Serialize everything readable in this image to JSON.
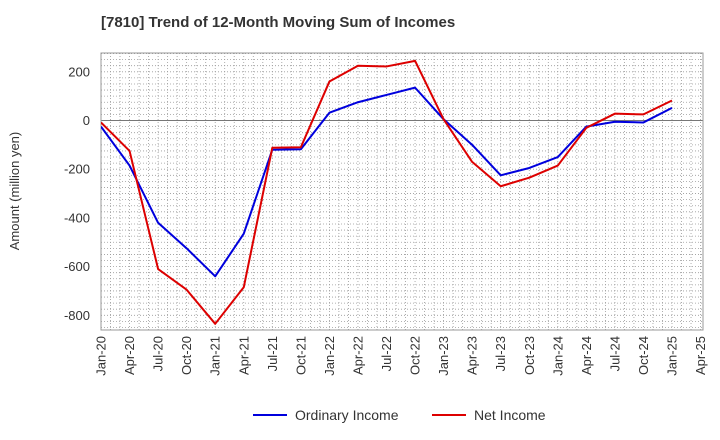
{
  "chart_data": {
    "type": "line",
    "title": "[7810]  Trend of 12-Month Moving Sum of Incomes",
    "xlabel": "",
    "ylabel": "Amount (million yen)",
    "ylim": [
      -860,
      275
    ],
    "yticks": [
      200,
      0,
      -200,
      -400,
      -600,
      -800
    ],
    "grid": true,
    "legend_position": "bottom-center",
    "categories": [
      "Jan-20",
      "Apr-20",
      "Jul-20",
      "Oct-20",
      "Jan-21",
      "Apr-21",
      "Jul-21",
      "Oct-21",
      "Jan-22",
      "Apr-22",
      "Jul-22",
      "Oct-22",
      "Jan-23",
      "Apr-23",
      "Jul-23",
      "Oct-23",
      "Jan-24",
      "Apr-24",
      "Jul-24",
      "Oct-24",
      "Jan-25",
      "Apr-25"
    ],
    "series": [
      {
        "name": "Ordinary Income",
        "color": "#0000dd",
        "values": [
          -25,
          -185,
          -420,
          -525,
          -640,
          -465,
          -120,
          -118,
          32,
          75,
          105,
          135,
          5,
          -100,
          -225,
          -195,
          -150,
          -25,
          -5,
          -8,
          52,
          null
        ]
      },
      {
        "name": "Net Income",
        "color": "#dd0000",
        "values": [
          -8,
          -125,
          -610,
          -695,
          -835,
          -685,
          -112,
          -110,
          160,
          225,
          222,
          245,
          5,
          -170,
          -270,
          -235,
          -185,
          -30,
          28,
          25,
          82,
          null
        ]
      }
    ]
  }
}
